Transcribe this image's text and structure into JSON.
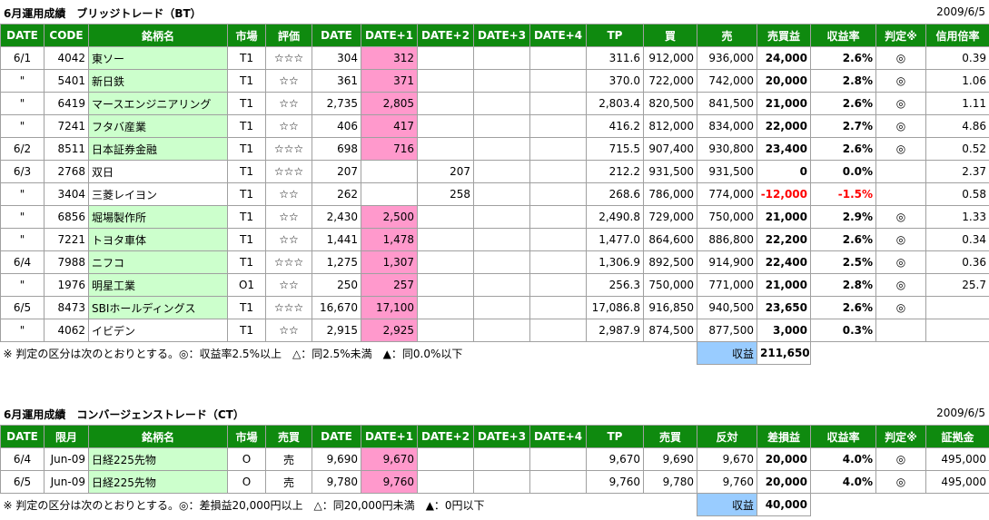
{
  "tables": [
    {
      "title": "6月運用成績　ブリッジトレード（BT）",
      "date": "2009/6/5",
      "headers": [
        "DATE",
        "CODE",
        "銘柄名",
        "市場",
        "評価",
        "DATE",
        "DATE+1",
        "DATE+2",
        "DATE+3",
        "DATE+4",
        "TP",
        "買",
        "売",
        "売買益",
        "収益率",
        "判定※",
        "信用倍率"
      ],
      "rows": [
        [
          "6/1",
          "4042",
          "東ソー",
          "T1",
          "☆☆☆",
          "304",
          "312",
          null,
          null,
          null,
          "311.6",
          "912,000",
          "936,000",
          "24,000",
          "2.6%",
          "◎",
          "0.39"
        ],
        [
          "\"",
          "5401",
          "新日鉄",
          "T1",
          "☆☆",
          "361",
          "371",
          null,
          null,
          null,
          "370.0",
          "722,000",
          "742,000",
          "20,000",
          "2.8%",
          "◎",
          "1.06"
        ],
        [
          "\"",
          "6419",
          "マースエンジニアリング",
          "T1",
          "☆☆",
          "2,735",
          "2,805",
          null,
          null,
          null,
          "2,803.4",
          "820,500",
          "841,500",
          "21,000",
          "2.6%",
          "◎",
          "1.11"
        ],
        [
          "\"",
          "7241",
          "フタバ産業",
          "T1",
          "☆☆",
          "406",
          "417",
          null,
          null,
          null,
          "416.2",
          "812,000",
          "834,000",
          "22,000",
          "2.7%",
          "◎",
          "4.86"
        ],
        [
          "6/2",
          "8511",
          "日本証券金融",
          "T1",
          "☆☆☆",
          "698",
          "716",
          null,
          null,
          null,
          "715.5",
          "907,400",
          "930,800",
          "23,400",
          "2.6%",
          "◎",
          "0.52"
        ],
        [
          "6/3",
          "2768",
          "双日",
          "T1",
          "☆☆☆",
          "207",
          null,
          "207",
          null,
          null,
          "212.2",
          "931,500",
          "931,500",
          "0",
          "0.0%",
          null,
          "2.37"
        ],
        [
          "\"",
          "3404",
          "三菱レイヨン",
          "T1",
          "☆☆",
          "262",
          null,
          "258",
          null,
          null,
          "268.6",
          "786,000",
          "774,000",
          "-12,000",
          "-1.5%",
          null,
          "0.58"
        ],
        [
          "\"",
          "6856",
          "堀場製作所",
          "T1",
          "☆☆",
          "2,430",
          "2,500",
          null,
          null,
          null,
          "2,490.8",
          "729,000",
          "750,000",
          "21,000",
          "2.9%",
          "◎",
          "1.33"
        ],
        [
          "\"",
          "7221",
          "トヨタ車体",
          "T1",
          "☆☆",
          "1,441",
          "1,478",
          null,
          null,
          null,
          "1,477.0",
          "864,600",
          "886,800",
          "22,200",
          "2.6%",
          "◎",
          "0.34"
        ],
        [
          "6/4",
          "7988",
          "ニフコ",
          "T1",
          "☆☆☆",
          "1,275",
          "1,307",
          null,
          null,
          null,
          "1,306.9",
          "892,500",
          "914,900",
          "22,400",
          "2.5%",
          "◎",
          "0.36"
        ],
        [
          "\"",
          "1976",
          "明星工業",
          "O1",
          "☆☆",
          "250",
          "257",
          null,
          null,
          null,
          "256.3",
          "750,000",
          "771,000",
          "21,000",
          "2.8%",
          "◎",
          "25.7"
        ],
        [
          "6/5",
          "8473",
          "SBIホールディングス",
          "T1",
          "☆☆☆",
          "16,670",
          "17,100",
          null,
          null,
          null,
          "17,086.8",
          "916,850",
          "940,500",
          "23,650",
          "2.6%",
          "◎",
          null
        ],
        [
          "\"",
          "4062",
          "イビデン",
          "T1",
          "☆☆",
          "2,915",
          "2,925",
          null,
          null,
          null,
          "2,987.9",
          "874,500",
          "877,500",
          "3,000",
          "0.3%",
          null,
          null
        ]
      ],
      "note": "※ 判定の区分は次のとおりとする。◎：収益率2.5%以上　△：同2.5%未満　▲：同0.0%以下",
      "total_label": "収益",
      "total": "211,650"
    },
    {
      "title": "6月運用成績　コンバージェンストレード（CT）",
      "date": "2009/6/5",
      "headers": [
        "DATE",
        "限月",
        "銘柄名",
        "市場",
        "売買",
        "DATE",
        "DATE+1",
        "DATE+2",
        "DATE+3",
        "DATE+4",
        "TP",
        "売買",
        "反対",
        "差損益",
        "収益率",
        "判定※",
        "証拠金"
      ],
      "rows": [
        [
          "6/4",
          "Jun-09",
          "日経225先物",
          "O",
          "売",
          "9,690",
          "9,670",
          null,
          null,
          null,
          "9,670",
          "9,690",
          "9,670",
          "20,000",
          "4.0%",
          "◎",
          "495,000"
        ],
        [
          "6/5",
          "Jun-09",
          "日経225先物",
          "O",
          "売",
          "9,780",
          "9,760",
          null,
          null,
          null,
          "9,760",
          "9,780",
          "9,760",
          "20,000",
          "4.0%",
          "◎",
          "495,000"
        ]
      ],
      "note": "※ 判定の区分は次のとおりとする。◎：差損益20,000円以上　△：同20,000円未満　▲：0円以下",
      "total_label": "収益",
      "total": "40,000"
    }
  ]
}
